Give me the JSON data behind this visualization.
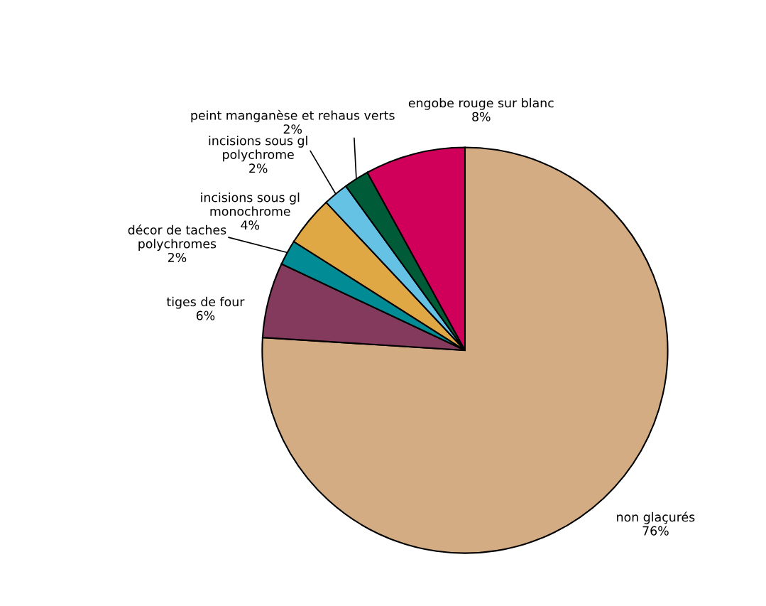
{
  "chart_data": {
    "type": "pie",
    "categories": [
      "non glaçurés",
      "tiges de four",
      "décor de taches\npolychromes",
      "incisions sous gl\nmonochrome",
      "incisions sous gl\npolychrome",
      "peint manganèse et rehaus verts",
      "engobe rouge sur blanc"
    ],
    "values": [
      76,
      6,
      2,
      4,
      2,
      2,
      8
    ],
    "value_labels": [
      "76%",
      "6%",
      "2%",
      "4%",
      "2%",
      "2%",
      "8%"
    ],
    "colors": [
      "#d4ac84",
      "#843a5c",
      "#008b95",
      "#e0a845",
      "#66c2e4",
      "#005c38",
      "#d0005a"
    ]
  }
}
